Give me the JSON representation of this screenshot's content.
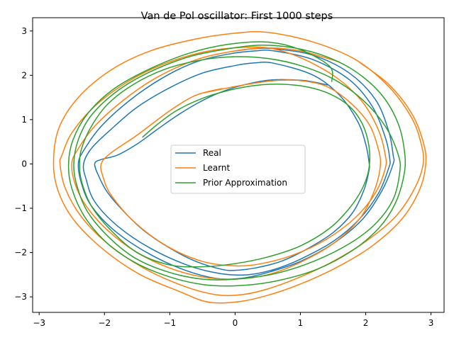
{
  "chart_data": {
    "type": "line",
    "title": "Van de Pol oscillator: First 1000 steps",
    "xlabel": "",
    "ylabel": "",
    "xlim": [
      -3.1,
      3.2
    ],
    "ylim": [
      -3.35,
      3.3
    ],
    "xticks": [
      -3,
      -2,
      -1,
      0,
      1,
      2,
      3
    ],
    "yticks": [
      -3,
      -2,
      -1,
      0,
      1,
      2,
      3
    ],
    "xtick_labels": [
      "−3",
      "−2",
      "−1",
      "0",
      "1",
      "2",
      "3"
    ],
    "ytick_labels": [
      "−3",
      "−2",
      "−1",
      "0",
      "1",
      "2",
      "3"
    ],
    "grid": false,
    "legend_position": "center",
    "series": [
      {
        "name": "Real",
        "color": "#1f77b4",
        "points": [
          [
            1.42,
            1.78
          ],
          [
            1.2,
            1.85
          ],
          [
            1.0,
            1.89
          ],
          [
            0.6,
            1.9
          ],
          [
            0.3,
            1.84
          ],
          [
            0.0,
            1.73
          ],
          [
            -0.3,
            1.57
          ],
          [
            -0.6,
            1.35
          ],
          [
            -0.9,
            1.08
          ],
          [
            -1.2,
            0.77
          ],
          [
            -1.5,
            0.45
          ],
          [
            -1.8,
            0.2
          ],
          [
            -2.05,
            0.1
          ],
          [
            -2.15,
            0.0
          ],
          [
            -2.08,
            -0.3
          ],
          [
            -1.95,
            -0.65
          ],
          [
            -1.7,
            -1.08
          ],
          [
            -1.4,
            -1.5
          ],
          [
            -1.0,
            -1.9
          ],
          [
            -0.6,
            -2.2
          ],
          [
            -0.2,
            -2.38
          ],
          [
            0.0,
            -2.4
          ],
          [
            0.3,
            -2.35
          ],
          [
            0.7,
            -2.2
          ],
          [
            1.1,
            -1.92
          ],
          [
            1.5,
            -1.55
          ],
          [
            1.8,
            -1.1
          ],
          [
            1.97,
            -0.6
          ],
          [
            2.05,
            -0.15
          ],
          [
            2.05,
            0.05
          ],
          [
            2.0,
            0.45
          ],
          [
            1.88,
            0.95
          ],
          [
            1.6,
            1.55
          ],
          [
            1.2,
            2.0
          ],
          [
            0.6,
            2.27
          ],
          [
            0.3,
            2.28
          ],
          [
            0.0,
            2.22
          ],
          [
            -0.5,
            2.05
          ],
          [
            -1.0,
            1.72
          ],
          [
            -1.5,
            1.28
          ],
          [
            -1.9,
            0.78
          ],
          [
            -2.2,
            0.35
          ],
          [
            -2.32,
            0.0
          ],
          [
            -2.28,
            -0.35
          ],
          [
            -2.15,
            -0.85
          ],
          [
            -1.8,
            -1.4
          ],
          [
            -1.3,
            -1.9
          ],
          [
            -0.7,
            -2.3
          ],
          [
            -0.2,
            -2.48
          ],
          [
            0.2,
            -2.5
          ],
          [
            0.6,
            -2.38
          ],
          [
            1.0,
            -2.15
          ],
          [
            1.5,
            -1.75
          ],
          [
            1.9,
            -1.25
          ],
          [
            2.2,
            -0.65
          ],
          [
            2.35,
            -0.1
          ],
          [
            2.37,
            0.1
          ],
          [
            2.3,
            0.6
          ],
          [
            2.1,
            1.3
          ],
          [
            1.75,
            1.9
          ],
          [
            1.2,
            2.35
          ],
          [
            0.6,
            2.55
          ],
          [
            0.3,
            2.55
          ],
          [
            -0.1,
            2.48
          ],
          [
            -0.6,
            2.3
          ],
          [
            -1.1,
            1.95
          ],
          [
            -1.6,
            1.45
          ],
          [
            -2.05,
            0.85
          ],
          [
            -2.32,
            0.3
          ],
          [
            -2.4,
            0.0
          ],
          [
            -2.35,
            -0.45
          ],
          [
            -2.2,
            -0.95
          ],
          [
            -1.85,
            -1.5
          ],
          [
            -1.35,
            -2.0
          ],
          [
            -0.8,
            -2.38
          ],
          [
            -0.3,
            -2.58
          ],
          [
            0.1,
            -2.58
          ],
          [
            0.5,
            -2.45
          ],
          [
            1.0,
            -2.2
          ],
          [
            1.5,
            -1.8
          ],
          [
            1.95,
            -1.25
          ],
          [
            2.25,
            -0.6
          ],
          [
            2.42,
            0.0
          ],
          [
            2.42,
            0.2
          ],
          [
            2.35,
            0.75
          ],
          [
            2.15,
            1.45
          ],
          [
            1.75,
            2.05
          ],
          [
            1.2,
            2.45
          ],
          [
            0.6,
            2.6
          ],
          [
            0.3,
            2.6
          ],
          [
            0.0,
            2.55
          ]
        ]
      },
      {
        "name": "Learnt",
        "color": "#ff7f0e",
        "points": [
          [
            1.6,
            2.3
          ],
          [
            1.0,
            2.55
          ],
          [
            0.5,
            2.62
          ],
          [
            0.0,
            2.55
          ],
          [
            -0.6,
            2.35
          ],
          [
            -1.2,
            1.95
          ],
          [
            -1.7,
            1.45
          ],
          [
            -2.15,
            0.85
          ],
          [
            -2.42,
            0.3
          ],
          [
            -2.5,
            0.0
          ],
          [
            -2.45,
            -0.45
          ],
          [
            -2.28,
            -0.95
          ],
          [
            -1.95,
            -1.5
          ],
          [
            -1.5,
            -2.0
          ],
          [
            -1.0,
            -2.35
          ],
          [
            -0.5,
            -2.55
          ],
          [
            0.0,
            -2.6
          ],
          [
            0.5,
            -2.5
          ],
          [
            1.0,
            -2.22
          ],
          [
            1.5,
            -1.8
          ],
          [
            1.9,
            -1.25
          ],
          [
            2.12,
            -0.65
          ],
          [
            2.22,
            -0.1
          ],
          [
            2.2,
            0.3
          ],
          [
            2.05,
            0.9
          ],
          [
            1.75,
            1.4
          ],
          [
            1.4,
            1.75
          ],
          [
            1.0,
            1.88
          ],
          [
            0.6,
            1.88
          ],
          [
            0.2,
            1.8
          ],
          [
            -0.1,
            1.72
          ],
          [
            -0.5,
            1.6
          ],
          [
            -0.2,
            1.7
          ],
          [
            -0.6,
            1.55
          ],
          [
            -1.0,
            1.2
          ],
          [
            -1.5,
            0.65
          ],
          [
            -1.9,
            0.25
          ],
          [
            -2.05,
            0.0
          ],
          [
            -2.02,
            -0.3
          ],
          [
            -1.9,
            -0.7
          ],
          [
            -1.55,
            -1.3
          ],
          [
            -1.05,
            -1.85
          ],
          [
            -0.5,
            -2.2
          ],
          [
            0.0,
            -2.3
          ],
          [
            0.4,
            -2.25
          ],
          [
            0.9,
            -2.05
          ],
          [
            1.4,
            -1.7
          ],
          [
            1.85,
            -1.2
          ],
          [
            2.15,
            -0.65
          ],
          [
            2.3,
            -0.1
          ],
          [
            2.3,
            0.2
          ],
          [
            2.2,
            0.75
          ],
          [
            1.95,
            1.4
          ],
          [
            1.55,
            1.95
          ],
          [
            1.0,
            2.4
          ],
          [
            0.5,
            2.62
          ],
          [
            0.0,
            2.62
          ],
          [
            -0.5,
            2.52
          ],
          [
            -1.1,
            2.25
          ],
          [
            -1.65,
            1.85
          ],
          [
            -2.15,
            1.3
          ],
          [
            -2.5,
            0.7
          ],
          [
            -2.65,
            0.2
          ],
          [
            -2.68,
            0.0
          ],
          [
            -2.6,
            -0.55
          ],
          [
            -2.35,
            -1.2
          ],
          [
            -1.95,
            -1.8
          ],
          [
            -1.4,
            -2.35
          ],
          [
            -0.8,
            -2.75
          ],
          [
            -0.3,
            -2.95
          ],
          [
            0.1,
            -2.95
          ],
          [
            0.5,
            -2.82
          ],
          [
            1.0,
            -2.55
          ],
          [
            1.5,
            -2.2
          ],
          [
            2.0,
            -1.75
          ],
          [
            2.45,
            -1.2
          ],
          [
            2.75,
            -0.55
          ],
          [
            2.88,
            0.0
          ],
          [
            2.85,
            0.45
          ],
          [
            2.7,
            1.05
          ],
          [
            2.35,
            1.75
          ],
          [
            1.85,
            2.35
          ],
          [
            1.2,
            2.75
          ],
          [
            0.5,
            2.97
          ],
          [
            0.0,
            2.95
          ],
          [
            -0.6,
            2.82
          ],
          [
            -1.3,
            2.55
          ],
          [
            -1.9,
            2.12
          ],
          [
            -2.4,
            1.5
          ],
          [
            -2.7,
            0.8
          ],
          [
            -2.78,
            0.0
          ],
          [
            -2.7,
            -0.65
          ],
          [
            -2.45,
            -1.3
          ],
          [
            -2.0,
            -1.95
          ],
          [
            -1.45,
            -2.5
          ],
          [
            -0.85,
            -2.88
          ],
          [
            -0.4,
            -3.12
          ],
          [
            0.1,
            -3.1
          ],
          [
            0.6,
            -2.92
          ],
          [
            1.1,
            -2.65
          ],
          [
            1.6,
            -2.3
          ],
          [
            2.1,
            -1.85
          ],
          [
            2.55,
            -1.25
          ],
          [
            2.82,
            -0.6
          ],
          [
            2.92,
            0.0
          ],
          [
            2.88,
            0.5
          ],
          [
            2.7,
            1.15
          ],
          [
            2.35,
            1.8
          ],
          [
            1.9,
            2.3
          ]
        ]
      },
      {
        "name": "Prior Approximation",
        "color": "#2ca02c",
        "points": [
          [
            -1.42,
            0.6
          ],
          [
            -1.2,
            0.88
          ],
          [
            -0.9,
            1.2
          ],
          [
            -0.5,
            1.48
          ],
          [
            -0.1,
            1.66
          ],
          [
            0.3,
            1.77
          ],
          [
            0.7,
            1.8
          ],
          [
            1.1,
            1.74
          ],
          [
            1.45,
            1.58
          ],
          [
            1.75,
            1.3
          ],
          [
            1.95,
            0.9
          ],
          [
            2.05,
            0.4
          ],
          [
            2.05,
            -0.1
          ],
          [
            1.95,
            -0.55
          ],
          [
            1.75,
            -1.0
          ],
          [
            1.45,
            -1.45
          ],
          [
            1.0,
            -1.85
          ],
          [
            0.5,
            -2.1
          ],
          [
            0.0,
            -2.25
          ],
          [
            -0.5,
            -2.32
          ],
          [
            -1.0,
            -2.28
          ],
          [
            -1.5,
            -2.0
          ],
          [
            -1.9,
            -1.5
          ],
          [
            -2.2,
            -0.95
          ],
          [
            -2.35,
            -0.4
          ],
          [
            -2.38,
            0.0
          ],
          [
            -2.35,
            0.35
          ],
          [
            -2.2,
            0.85
          ],
          [
            -1.95,
            1.35
          ],
          [
            -1.55,
            1.8
          ],
          [
            -1.05,
            2.15
          ],
          [
            -0.5,
            2.35
          ],
          [
            0.0,
            2.42
          ],
          [
            0.5,
            2.38
          ],
          [
            1.0,
            2.22
          ],
          [
            1.5,
            1.92
          ],
          [
            1.95,
            1.45
          ],
          [
            2.3,
            0.85
          ],
          [
            2.5,
            0.2
          ],
          [
            2.52,
            -0.2
          ],
          [
            2.42,
            -0.8
          ],
          [
            2.15,
            -1.35
          ],
          [
            1.75,
            -1.8
          ],
          [
            1.2,
            -2.2
          ],
          [
            0.6,
            -2.48
          ],
          [
            0.0,
            -2.6
          ],
          [
            -0.5,
            -2.6
          ],
          [
            -1.0,
            -2.45
          ],
          [
            -1.5,
            -2.15
          ],
          [
            -1.9,
            -1.7
          ],
          [
            -2.25,
            -1.1
          ],
          [
            -2.42,
            -0.5
          ],
          [
            -2.47,
            0.0
          ],
          [
            -2.4,
            0.55
          ],
          [
            -2.2,
            1.1
          ],
          [
            -1.8,
            1.65
          ],
          [
            -1.3,
            2.08
          ],
          [
            -0.7,
            2.42
          ],
          [
            -0.1,
            2.6
          ],
          [
            0.4,
            2.68
          ],
          [
            0.9,
            2.62
          ],
          [
            1.4,
            2.42
          ],
          [
            1.85,
            2.08
          ],
          [
            2.25,
            1.55
          ],
          [
            2.5,
            0.9
          ],
          [
            2.6,
            0.2
          ],
          [
            2.58,
            -0.3
          ],
          [
            2.45,
            -0.9
          ],
          [
            2.2,
            -1.45
          ],
          [
            1.8,
            -1.95
          ],
          [
            1.25,
            -2.38
          ],
          [
            0.6,
            -2.65
          ],
          [
            0.0,
            -2.75
          ],
          [
            -0.5,
            -2.72
          ],
          [
            -1.0,
            -2.55
          ],
          [
            -1.5,
            -2.25
          ],
          [
            -1.95,
            -1.8
          ],
          [
            -2.3,
            -1.2
          ],
          [
            -2.5,
            -0.55
          ],
          [
            -2.55,
            0.0
          ],
          [
            -2.48,
            0.55
          ],
          [
            -2.25,
            1.15
          ],
          [
            -1.85,
            1.7
          ],
          [
            -1.3,
            2.15
          ],
          [
            -0.7,
            2.5
          ],
          [
            -0.1,
            2.7
          ],
          [
            0.5,
            2.75
          ],
          [
            1.0,
            2.58
          ],
          [
            1.45,
            2.2
          ],
          [
            1.48,
            1.85
          ]
        ]
      }
    ]
  }
}
